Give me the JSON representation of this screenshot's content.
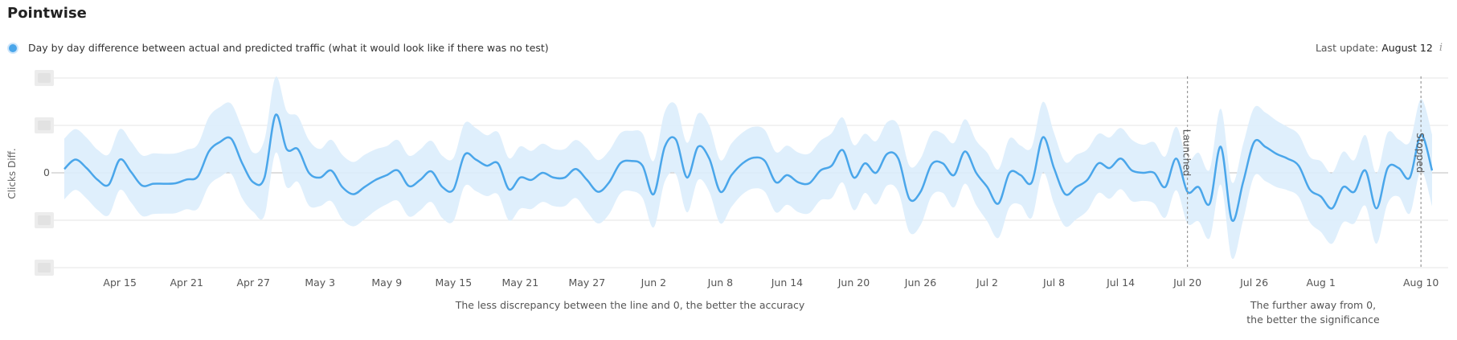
{
  "page": {
    "title": "Pointwise",
    "legend_label": "Day by day difference between actual and predicted traffic (what it would look like if there was no test)",
    "last_update_label": "Last update:",
    "last_update_value": "August 12",
    "info_icon": "info-icon"
  },
  "colors": {
    "line": "#4aa6ea",
    "band": "#dcedfc",
    "grid": "#e6e6e6",
    "zero": "#bdbdbd",
    "marker": "#999999"
  },
  "chart_data": {
    "type": "area",
    "title": "",
    "ylabel": "Clicks Diff.",
    "y_tick_labels": [
      "",
      "",
      "0",
      "",
      ""
    ],
    "ylim": [
      -2,
      2
    ],
    "start_date": "Apr 10",
    "x_tick_labels": [
      "Apr 15",
      "Apr 21",
      "Apr 27",
      "May 3",
      "May 9",
      "May 15",
      "May 21",
      "May 27",
      "Jun 2",
      "Jun 8",
      "Jun 14",
      "Jun 20",
      "Jun 26",
      "Jul 2",
      "Jul 8",
      "Jul 14",
      "Jul 20",
      "Jul 26",
      "Aug 1",
      "Aug 10"
    ],
    "x_tick_days": [
      5,
      11,
      17,
      23,
      29,
      35,
      41,
      47,
      53,
      59,
      65,
      71,
      77,
      83,
      89,
      95,
      101,
      107,
      113,
      122
    ],
    "markers": [
      {
        "label": "Launched",
        "day": 101
      },
      {
        "label": "Stopped",
        "day": 122
      }
    ],
    "band_halfwidth": 0.58,
    "band_halfwidth_peak": 0.8,
    "values": [
      0.08,
      0.28,
      0.1,
      -0.15,
      -0.25,
      0.28,
      0.02,
      -0.27,
      -0.23,
      -0.23,
      -0.22,
      -0.14,
      -0.08,
      0.45,
      0.65,
      0.72,
      0.2,
      -0.2,
      -0.1,
      1.22,
      0.5,
      0.5,
      0.0,
      -0.1,
      0.05,
      -0.3,
      -0.45,
      -0.3,
      -0.15,
      -0.05,
      0.05,
      -0.28,
      -0.15,
      0.03,
      -0.3,
      -0.35,
      0.38,
      0.28,
      0.15,
      0.2,
      -0.35,
      -0.1,
      -0.15,
      0.0,
      -0.1,
      -0.1,
      0.08,
      -0.15,
      -0.4,
      -0.2,
      0.2,
      0.25,
      0.15,
      -0.45,
      0.55,
      0.7,
      -0.1,
      0.55,
      0.3,
      -0.4,
      -0.05,
      0.2,
      0.32,
      0.25,
      -0.2,
      -0.05,
      -0.2,
      -0.22,
      0.05,
      0.15,
      0.48,
      -0.1,
      0.2,
      0.0,
      0.4,
      0.3,
      -0.55,
      -0.4,
      0.18,
      0.2,
      -0.05,
      0.45,
      0.0,
      -0.3,
      -0.65,
      0.0,
      -0.05,
      -0.2,
      0.75,
      0.1,
      -0.45,
      -0.3,
      -0.15,
      0.2,
      0.1,
      0.3,
      0.05,
      0.0,
      0.0,
      -0.3,
      0.3,
      -0.4,
      -0.3,
      -0.65,
      0.55,
      -1.0,
      -0.2,
      0.65,
      0.55,
      0.4,
      0.3,
      0.15,
      -0.35,
      -0.5,
      -0.75,
      -0.3,
      -0.4,
      0.05,
      -0.75,
      0.1,
      0.1,
      -0.1,
      0.8,
      0.05
    ],
    "annotations": [
      {
        "text": "The less discrepancy between the line and 0, the better the accuracy"
      },
      {
        "text": "The further away from 0,"
      },
      {
        "text": "the better the significance"
      }
    ]
  }
}
